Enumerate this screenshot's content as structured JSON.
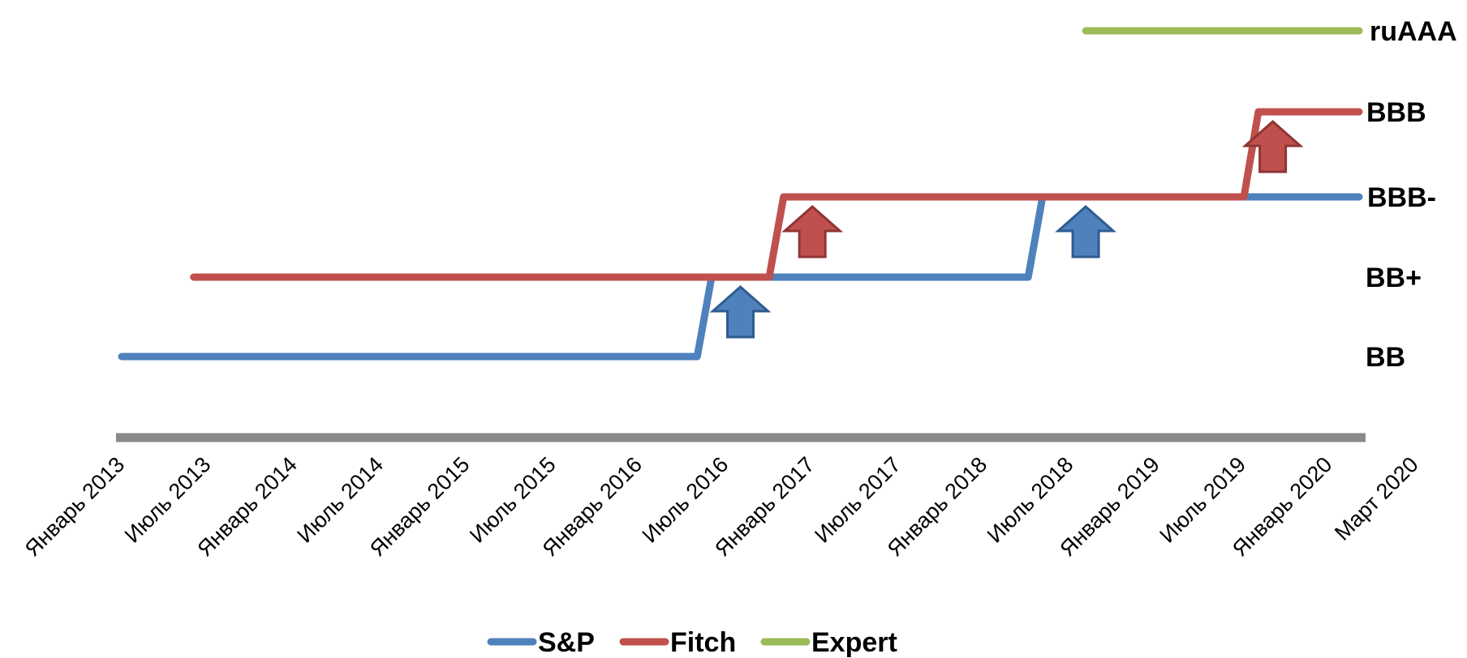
{
  "chart_data": {
    "type": "line",
    "title": "",
    "xlabel": "",
    "ylabel": "",
    "x_ticks": [
      "Январь 2013",
      "Июль 2013",
      "Январь 2014",
      "Июль 2014",
      "Январь 2015",
      "Июль 2015",
      "Январь 2016",
      "Июль 2016",
      "Январь 2017",
      "Июль 2017",
      "Январь 2018",
      "Июль 2018",
      "Январь 2019",
      "Июль 2019",
      "Январь 2020",
      "Март 2020"
    ],
    "y_levels": [
      "BB",
      "BB+",
      "BBB-",
      "BBB",
      "ruAAA"
    ],
    "series": [
      {
        "name": "S&P",
        "color": "#4F81BD",
        "points": [
          [
            "2013-01",
            "BB"
          ],
          [
            "2016-05",
            "BB"
          ],
          [
            "2016-06",
            "BB+"
          ],
          [
            "2018-04",
            "BB+"
          ],
          [
            "2018-05",
            "BBB-"
          ],
          [
            "2020-03",
            "BBB-"
          ]
        ]
      },
      {
        "name": "Fitch",
        "color": "#C0504D",
        "points": [
          [
            "2013-06",
            "BB+"
          ],
          [
            "2016-10",
            "BB+"
          ],
          [
            "2016-11",
            "BBB-"
          ],
          [
            "2019-07",
            "BBB-"
          ],
          [
            "2019-08",
            "BBB"
          ],
          [
            "2020-03",
            "BBB"
          ]
        ]
      },
      {
        "name": "Expert",
        "color": "#9BBB59",
        "points": [
          [
            "2018-08",
            "ruAAA"
          ],
          [
            "2020-03",
            "ruAAA"
          ]
        ]
      }
    ],
    "upgrade_markers": [
      {
        "series": "S&P",
        "date": "2016-08"
      },
      {
        "series": "Fitch",
        "date": "2017-01"
      },
      {
        "series": "S&P",
        "date": "2018-08"
      },
      {
        "series": "Fitch",
        "date": "2019-09"
      }
    ],
    "legend": {
      "position": "bottom",
      "entries": [
        {
          "name": "S&P",
          "color": "#4F81BD"
        },
        {
          "name": "Fitch",
          "color": "#C0504D"
        },
        {
          "name": "Expert",
          "color": "#9BBB59"
        }
      ]
    },
    "axis_color": "#898989"
  }
}
